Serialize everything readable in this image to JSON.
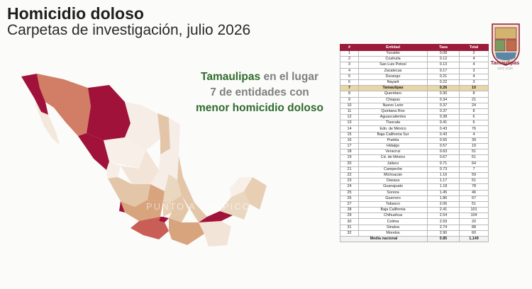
{
  "header": {
    "title": "Homicidio doloso",
    "subtitle": "Carpetas de investigación, julio 2026"
  },
  "headline": {
    "line1_highlight": "Tamaulipas",
    "line1_rest": " en el lugar",
    "line2": "7 de entidades con",
    "line3": "menor homicidio doloso"
  },
  "watermark": "PUNTO A TAMPICO",
  "logo": {
    "name": "Tamaulipas",
    "sub": "2022-2028"
  },
  "colors": {
    "header_bg": "#9b1b3a",
    "highlight_row": "#e6d6a8",
    "headline_green": "#2f6b2c"
  },
  "chart_data": {
    "type": "table",
    "columns": [
      "#",
      "Entidad",
      "Tasa",
      "Total"
    ],
    "rows": [
      [
        "1",
        "Yucatán",
        "0.08",
        "2"
      ],
      [
        "2",
        "Coahuila",
        "0.12",
        "4"
      ],
      [
        "3",
        "San Luis Potosí",
        "0.13",
        "4"
      ],
      [
        "4",
        "Zacatecas",
        "0.17",
        "3"
      ],
      [
        "5",
        "Durango",
        "0.21",
        "4"
      ],
      [
        "6",
        "Nayarit",
        "0.22",
        "3"
      ],
      [
        "7",
        "Tamaulipas",
        "0.26",
        "10"
      ],
      [
        "8",
        "Querétaro",
        "0.30",
        "8"
      ],
      [
        "9",
        "Chiapas",
        "0.34",
        "21"
      ],
      [
        "10",
        "Nuevo León",
        "0.37",
        "24"
      ],
      [
        "11",
        "Quintana Roo",
        "0.37",
        "8"
      ],
      [
        "12",
        "Aguascalientes",
        "0.38",
        "6"
      ],
      [
        "13",
        "Tlaxcala",
        "0.41",
        "6"
      ],
      [
        "14",
        "Edo. de México",
        "0.43",
        "76"
      ],
      [
        "15",
        "Baja California Sur",
        "0.43",
        "4"
      ],
      [
        "16",
        "Puebla",
        "0.55",
        "39"
      ],
      [
        "17",
        "Hidalgo",
        "0.57",
        "19"
      ],
      [
        "18",
        "Veracruz",
        "0.63",
        "51"
      ],
      [
        "19",
        "Cd. de México",
        "0.67",
        "61"
      ],
      [
        "20",
        "Jalisco",
        "0.71",
        "64"
      ],
      [
        "21",
        "Campeche",
        "0.73",
        "7"
      ],
      [
        "22",
        "Michoacán",
        "1.16",
        "59"
      ],
      [
        "23",
        "Oaxaca",
        "1.17",
        "51"
      ],
      [
        "24",
        "Guanajuato",
        "1.18",
        "78"
      ],
      [
        "25",
        "Sonora",
        "1.45",
        "46"
      ],
      [
        "26",
        "Guerrero",
        "1.86",
        "67"
      ],
      [
        "27",
        "Tabasco",
        "2.06",
        "51"
      ],
      [
        "28",
        "Baja California",
        "2.41",
        "101"
      ],
      [
        "29",
        "Chihuahua",
        "2.54",
        "104"
      ],
      [
        "30",
        "Colima",
        "2.59",
        "20"
      ],
      [
        "31",
        "Sinaloa",
        "2.74",
        "88"
      ],
      [
        "32",
        "Morelos",
        "2.90",
        "60"
      ]
    ],
    "highlight_row": 7,
    "footer": {
      "label": "Media nacional",
      "tasa": "0.85",
      "total": "1,149"
    }
  }
}
